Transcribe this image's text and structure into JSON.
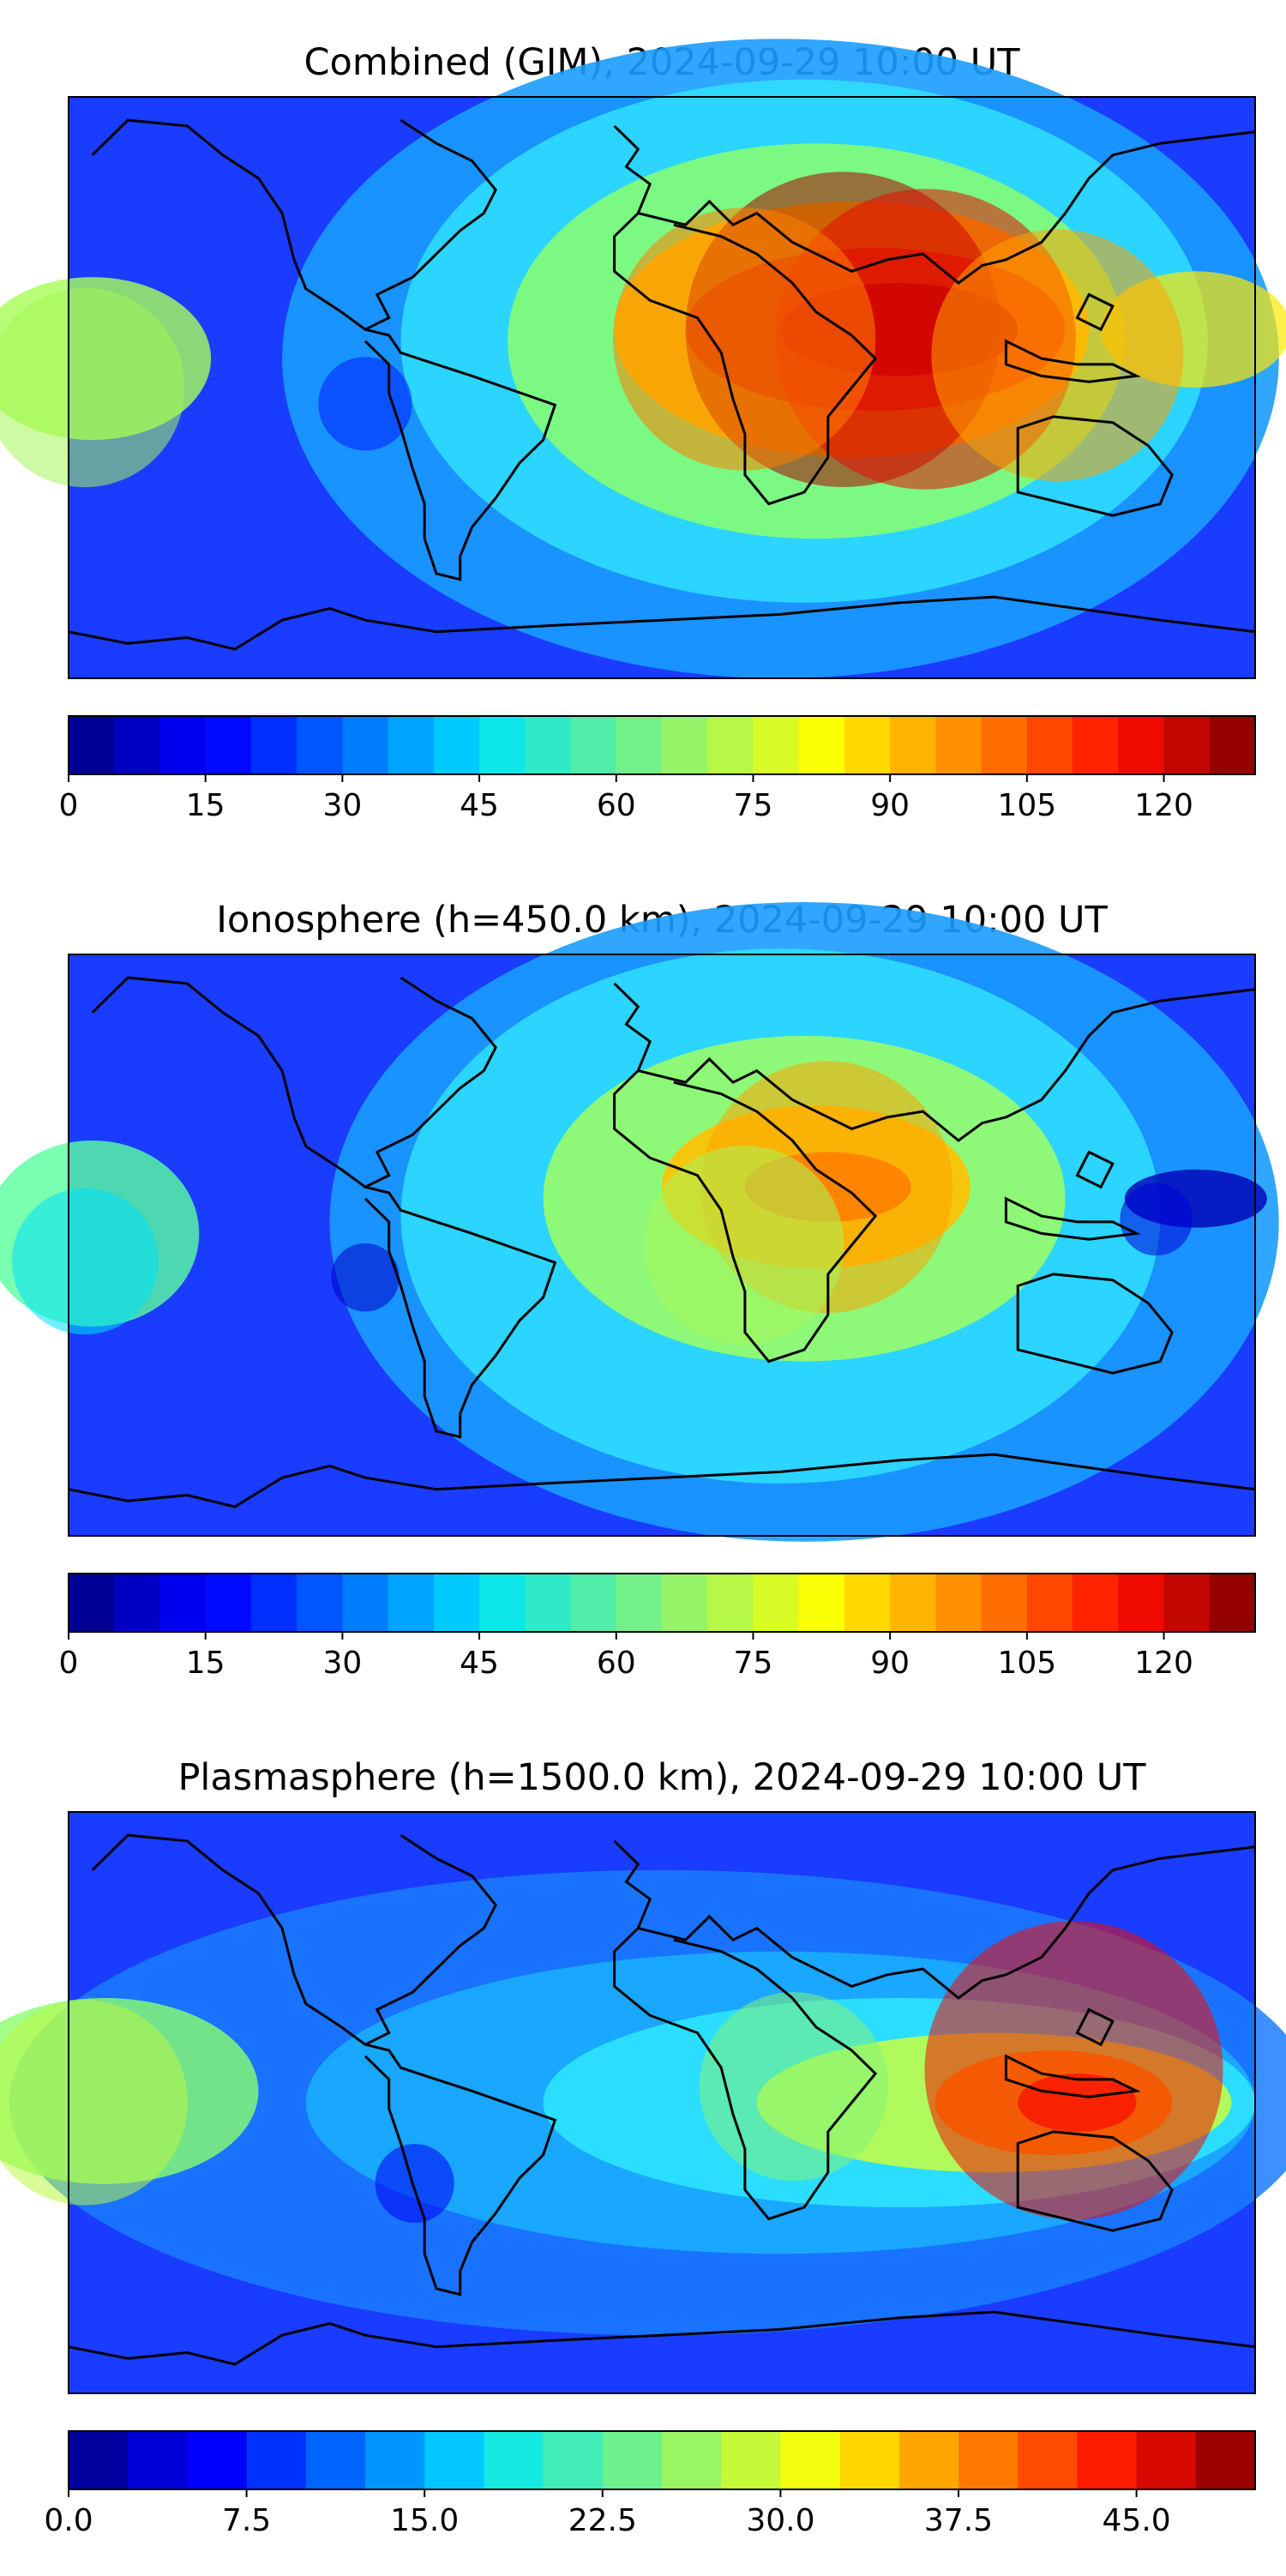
{
  "figure": {
    "panels": [
      {
        "title": "Combined (GIM), 2024-09-29 10:00 UT",
        "colorbar_ticks": [
          "0",
          "15",
          "30",
          "45",
          "60",
          "75",
          "90",
          "105",
          "120"
        ]
      },
      {
        "title": "Ionosphere  (h=450.0 km), 2024-09-29 10:00 UT",
        "colorbar_ticks": [
          "0",
          "15",
          "30",
          "45",
          "60",
          "75",
          "90",
          "105",
          "120"
        ]
      },
      {
        "title": "Plasmasphere (h=1500.0 km), 2024-09-29 10:00 UT",
        "colorbar_ticks": [
          "0.0",
          "7.5",
          "15.0",
          "22.5",
          "30.0",
          "37.5",
          "45.0"
        ]
      }
    ]
  },
  "chart_data": [
    {
      "type": "heatmap",
      "title": "Combined (GIM), 2024-09-29 10:00 UT",
      "projection": "plate carree, global",
      "colormap": "jet",
      "color_levels": 26,
      "color_range": [
        0,
        130
      ],
      "colorbar_ticks": [
        0,
        15,
        30,
        45,
        60,
        75,
        90,
        105,
        120
      ],
      "max_region": "Arabia / India, ~20N, ~60E, ~125",
      "features": [
        {
          "lon": 55,
          "lat": 18,
          "value": 125
        },
        {
          "lon": 80,
          "lat": 15,
          "value": 118
        },
        {
          "lon": 25,
          "lat": 15,
          "value": 100
        },
        {
          "lon": 120,
          "lat": 10,
          "value": 95
        },
        {
          "lon": -175,
          "lat": 0,
          "value": 70
        },
        {
          "lon": -90,
          "lat": -5,
          "value": 20
        }
      ]
    },
    {
      "type": "heatmap",
      "title": "Ionosphere  (h=450.0 km), 2024-09-29 10:00 UT",
      "projection": "plate carree, global",
      "colormap": "jet",
      "color_levels": 26,
      "color_range": [
        0,
        130
      ],
      "colorbar_ticks": [
        0,
        15,
        30,
        45,
        60,
        75,
        90,
        105,
        120
      ],
      "max_region": "Arabia, ~20N, ~55E, ~95",
      "features": [
        {
          "lon": 50,
          "lat": 18,
          "value": 95
        },
        {
          "lon": 25,
          "lat": 0,
          "value": 70
        },
        {
          "lon": 150,
          "lat": 8,
          "value": 10
        },
        {
          "lon": -175,
          "lat": -5,
          "value": 45
        },
        {
          "lon": -90,
          "lat": -10,
          "value": 8
        }
      ]
    },
    {
      "type": "heatmap",
      "title": "Plasmasphere (h=1500.0 km), 2024-09-29 10:00 UT",
      "projection": "plate carree, global",
      "colormap": "jet",
      "color_levels": 20,
      "color_range": [
        0,
        50
      ],
      "colorbar_ticks": [
        0.0,
        7.5,
        15.0,
        22.5,
        30.0,
        37.5,
        45.0
      ],
      "max_region": "Philippines / Indonesia, ~10N, ~125E, ~45",
      "features": [
        {
          "lon": 125,
          "lat": 10,
          "value": 45
        },
        {
          "lon": 40,
          "lat": 5,
          "value": 25
        },
        {
          "lon": -175,
          "lat": 0,
          "value": 28
        },
        {
          "lon": -75,
          "lat": -25,
          "value": 5
        }
      ]
    }
  ]
}
